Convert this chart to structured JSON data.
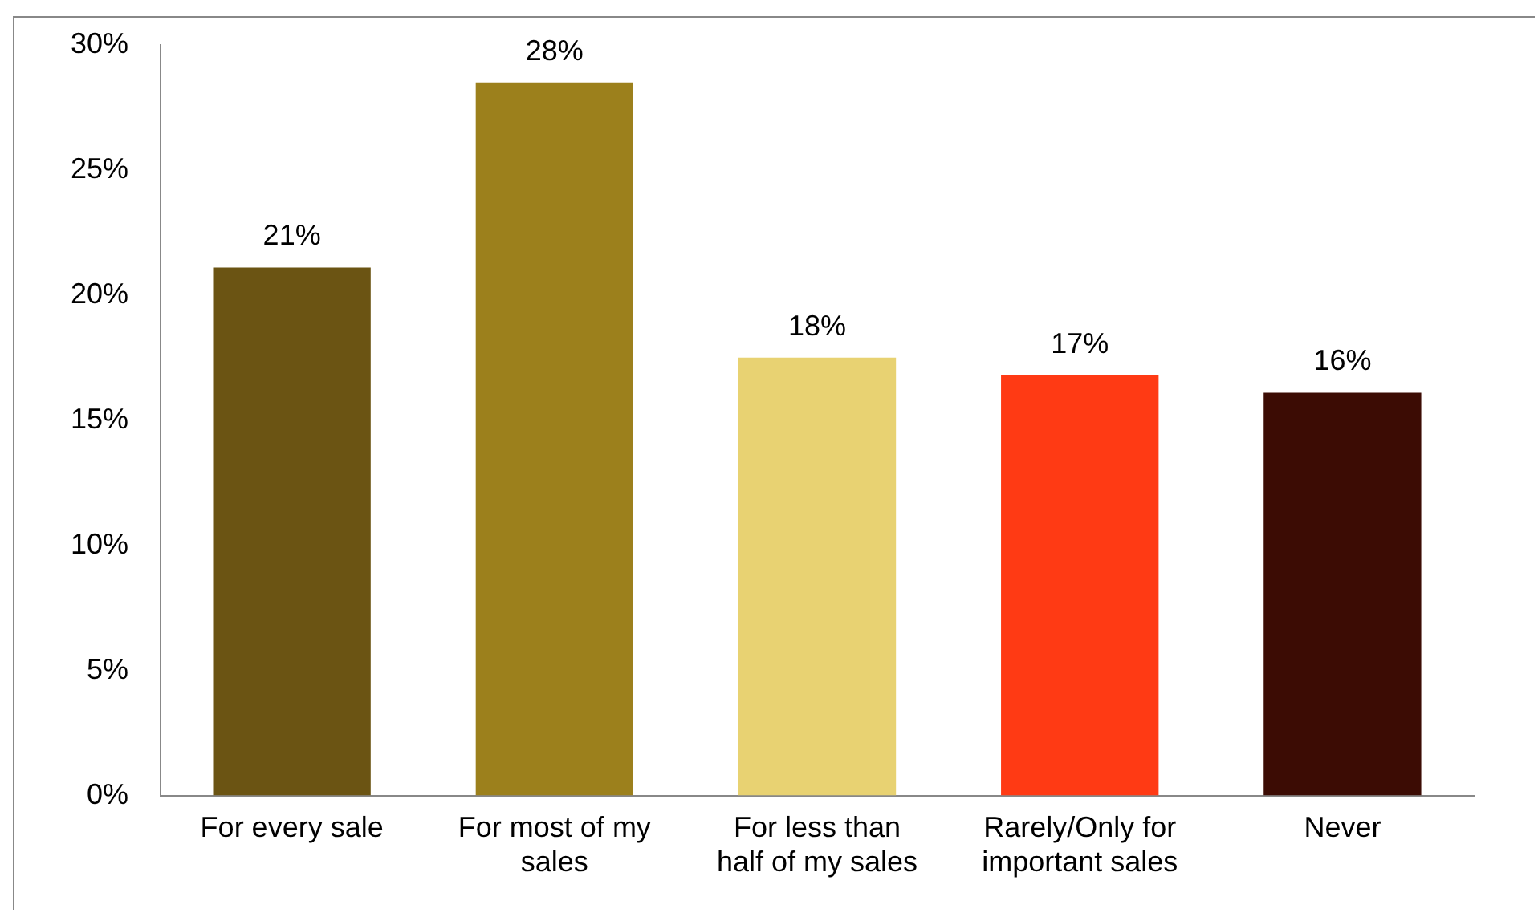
{
  "chart_data": {
    "type": "bar",
    "categories": [
      "For every sale",
      "For most of my sales",
      "For less than half of my sales",
      "Rarely/Only for important sales",
      "Never"
    ],
    "values": [
      21.1,
      28.5,
      17.5,
      16.8,
      16.1
    ],
    "value_labels": [
      "21%",
      "28%",
      "18%",
      "17%",
      "16%"
    ],
    "colors": [
      "#6b5413",
      "#9c801c",
      "#e8d272",
      "#ff3a14",
      "#3c0c04"
    ],
    "ylim": [
      0,
      30
    ],
    "yticks": [
      {
        "value": 0,
        "label": "0%"
      },
      {
        "value": 5,
        "label": "5%"
      },
      {
        "value": 10,
        "label": "10%"
      },
      {
        "value": 15,
        "label": "15%"
      },
      {
        "value": 20,
        "label": "20%"
      },
      {
        "value": 25,
        "label": "25%"
      },
      {
        "value": 30,
        "label": "30%"
      }
    ],
    "grid": false,
    "legend": false
  }
}
